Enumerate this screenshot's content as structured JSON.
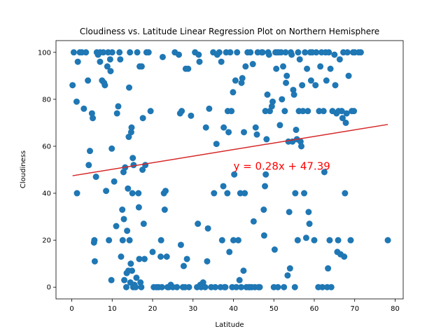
{
  "chart_data": {
    "type": "scatter",
    "title": "Cloudiness vs. Latitude Linear Regression Plot on Northern Hemisphere",
    "xlabel": "Latitude",
    "ylabel": "Cloudiness",
    "xlim": [
      -3.9,
      82
    ],
    "ylim": [
      -5,
      105
    ],
    "xticks": [
      0,
      10,
      20,
      30,
      40,
      50,
      60,
      70,
      80
    ],
    "yticks": [
      0,
      20,
      40,
      60,
      80,
      100
    ],
    "grid": false,
    "colors": {
      "points": "#1f77b4",
      "regression": "#d62728",
      "equation": "#ff0000"
    },
    "regression": {
      "slope": 0.28,
      "intercept": 47.39,
      "x_range": [
        0.2,
        78.2
      ],
      "equation_label": "y = 0.28x + 47.39",
      "label_position": [
        40,
        50
      ]
    },
    "points": [
      [
        0.2,
        86
      ],
      [
        0.5,
        100
      ],
      [
        1.2,
        79
      ],
      [
        1.5,
        96
      ],
      [
        1.3,
        40
      ],
      [
        2,
        100
      ],
      [
        2.5,
        100
      ],
      [
        3,
        76
      ],
      [
        3.5,
        100
      ],
      [
        4,
        88
      ],
      [
        4.2,
        52
      ],
      [
        4.5,
        58
      ],
      [
        5,
        74
      ],
      [
        5.2,
        72
      ],
      [
        5.5,
        19
      ],
      [
        5.6,
        20
      ],
      [
        5.7,
        11
      ],
      [
        6,
        47
      ],
      [
        6.2,
        100
      ],
      [
        6.5,
        99
      ],
      [
        7,
        100
      ],
      [
        7,
        96
      ],
      [
        7.5,
        88
      ],
      [
        7.8,
        100
      ],
      [
        8,
        87
      ],
      [
        8.2,
        86
      ],
      [
        8.5,
        41
      ],
      [
        8.8,
        94
      ],
      [
        9,
        100
      ],
      [
        9.2,
        20
      ],
      [
        9.5,
        97
      ],
      [
        9.6,
        92
      ],
      [
        9.8,
        3
      ],
      [
        9.9,
        59
      ],
      [
        10,
        100
      ],
      [
        10.5,
        45
      ],
      [
        11,
        26
      ],
      [
        11.2,
        74
      ],
      [
        11.5,
        77
      ],
      [
        11.8,
        100
      ],
      [
        12,
        97
      ],
      [
        12.2,
        13
      ],
      [
        12.5,
        33
      ],
      [
        12.6,
        20
      ],
      [
        12.8,
        49
      ],
      [
        12.9,
        29
      ],
      [
        13,
        3
      ],
      [
        13.2,
        51
      ],
      [
        13.5,
        0
      ],
      [
        13.6,
        6
      ],
      [
        13.7,
        24
      ],
      [
        13.9,
        42
      ],
      [
        14,
        7
      ],
      [
        14.1,
        64
      ],
      [
        14.2,
        85
      ],
      [
        14.3,
        20
      ],
      [
        14.4,
        100
      ],
      [
        14.5,
        2
      ],
      [
        14.6,
        10
      ],
      [
        14.7,
        66
      ],
      [
        14.8,
        68
      ],
      [
        14.9,
        7
      ],
      [
        15,
        40
      ],
      [
        15.1,
        55
      ],
      [
        15.2,
        0
      ],
      [
        15.3,
        52
      ],
      [
        15.5,
        1
      ],
      [
        15.8,
        0
      ],
      [
        16,
        4
      ],
      [
        16.2,
        100
      ],
      [
        16.5,
        40
      ],
      [
        16.6,
        34
      ],
      [
        16.7,
        12
      ],
      [
        16.8,
        94
      ],
      [
        17,
        2
      ],
      [
        17.2,
        0
      ],
      [
        17.3,
        94
      ],
      [
        17.5,
        50
      ],
      [
        17.6,
        72
      ],
      [
        17.8,
        27
      ],
      [
        18,
        12
      ],
      [
        18.2,
        52
      ],
      [
        18.5,
        100
      ],
      [
        19,
        100
      ],
      [
        19.5,
        75
      ],
      [
        20,
        15
      ],
      [
        20.3,
        0
      ],
      [
        21,
        0
      ],
      [
        21.5,
        0
      ],
      [
        22,
        13
      ],
      [
        22.1,
        20
      ],
      [
        22.3,
        0
      ],
      [
        22.5,
        98
      ],
      [
        22.8,
        40
      ],
      [
        23,
        33
      ],
      [
        23.2,
        41
      ],
      [
        23.5,
        13
      ],
      [
        23.7,
        0
      ],
      [
        24,
        0
      ],
      [
        24.5,
        1
      ],
      [
        25,
        0
      ],
      [
        25.5,
        100
      ],
      [
        26,
        0
      ],
      [
        26.5,
        99
      ],
      [
        26.8,
        74
      ],
      [
        27,
        18
      ],
      [
        27.2,
        75
      ],
      [
        27.5,
        0
      ],
      [
        27.7,
        9
      ],
      [
        28,
        0
      ],
      [
        28.2,
        93
      ],
      [
        28.5,
        12
      ],
      [
        28.8,
        93
      ],
      [
        29,
        0
      ],
      [
        29.5,
        73
      ],
      [
        30.5,
        100
      ],
      [
        31,
        0
      ],
      [
        31.2,
        27
      ],
      [
        31.4,
        99
      ],
      [
        31.6,
        96
      ],
      [
        31.8,
        1
      ],
      [
        32,
        0
      ],
      [
        32.5,
        2
      ],
      [
        33,
        0
      ],
      [
        33.2,
        68
      ],
      [
        33.5,
        11
      ],
      [
        33.7,
        25
      ],
      [
        34,
        76
      ],
      [
        34.5,
        0
      ],
      [
        35,
        100
      ],
      [
        35.2,
        40
      ],
      [
        35.5,
        0
      ],
      [
        35.8,
        61
      ],
      [
        36,
        99
      ],
      [
        36.5,
        100
      ],
      [
        36.8,
        0
      ],
      [
        37,
        96
      ],
      [
        37.2,
        20
      ],
      [
        37.5,
        43
      ],
      [
        37.6,
        68
      ],
      [
        37.8,
        0
      ],
      [
        38,
        0
      ],
      [
        38.2,
        100
      ],
      [
        38.5,
        40
      ],
      [
        38.6,
        75
      ],
      [
        38.8,
        66
      ],
      [
        39,
        15
      ],
      [
        39.2,
        100
      ],
      [
        39.5,
        75
      ],
      [
        39.7,
        0
      ],
      [
        39.9,
        83
      ],
      [
        40,
        20
      ],
      [
        40.2,
        48
      ],
      [
        40.5,
        88
      ],
      [
        40.7,
        0
      ],
      [
        40.9,
        100
      ],
      [
        41.2,
        20
      ],
      [
        41.5,
        3
      ],
      [
        41.7,
        40
      ],
      [
        41.9,
        0
      ],
      [
        42,
        87
      ],
      [
        42.2,
        89
      ],
      [
        42.5,
        7
      ],
      [
        42.6,
        66
      ],
      [
        42.8,
        40
      ],
      [
        43,
        94
      ],
      [
        43.2,
        0
      ],
      [
        43.5,
        100
      ],
      [
        43.8,
        0
      ],
      [
        44,
        0
      ],
      [
        44.2,
        100
      ],
      [
        44.5,
        0
      ],
      [
        44.8,
        95
      ],
      [
        45,
        28
      ],
      [
        45.3,
        0
      ],
      [
        45.5,
        68
      ],
      [
        45.8,
        65
      ],
      [
        46,
        100
      ],
      [
        46.2,
        0
      ],
      [
        46.5,
        0
      ],
      [
        47,
        100
      ],
      [
        47.2,
        100
      ],
      [
        47.5,
        33
      ],
      [
        47.6,
        22
      ],
      [
        47.8,
        43
      ],
      [
        47.9,
        75
      ],
      [
        48,
        48
      ],
      [
        48.2,
        63
      ],
      [
        48.4,
        82
      ],
      [
        48.6,
        100
      ],
      [
        48.8,
        99
      ],
      [
        49,
        75
      ],
      [
        49.5,
        77
      ],
      [
        49.7,
        79
      ],
      [
        50,
        0
      ],
      [
        50.2,
        16
      ],
      [
        50.4,
        100
      ],
      [
        50.6,
        93
      ],
      [
        50.8,
        100
      ],
      [
        51,
        0
      ],
      [
        51.2,
        100
      ],
      [
        51.5,
        69
      ],
      [
        51.8,
        100
      ],
      [
        52,
        80
      ],
      [
        52.3,
        94
      ],
      [
        52.5,
        0
      ],
      [
        52.7,
        75
      ],
      [
        52.9,
        100
      ],
      [
        53,
        87
      ],
      [
        53.2,
        90
      ],
      [
        53.4,
        5
      ],
      [
        53.6,
        62
      ],
      [
        53.8,
        32
      ],
      [
        54,
        8
      ],
      [
        54.2,
        100
      ],
      [
        54.4,
        99
      ],
      [
        54.6,
        62
      ],
      [
        54.8,
        84
      ],
      [
        55,
        82
      ],
      [
        55.2,
        0
      ],
      [
        55.3,
        40
      ],
      [
        55.5,
        67
      ],
      [
        55.7,
        63
      ],
      [
        55.9,
        20
      ],
      [
        56,
        100
      ],
      [
        56.2,
        75
      ],
      [
        56.4,
        97
      ],
      [
        56.6,
        62
      ],
      [
        56.8,
        60
      ],
      [
        57,
        86
      ],
      [
        57.2,
        75
      ],
      [
        57.5,
        40
      ],
      [
        57.7,
        100
      ],
      [
        58,
        21
      ],
      [
        58.2,
        93
      ],
      [
        58.4,
        75
      ],
      [
        58.6,
        32
      ],
      [
        58.8,
        27
      ],
      [
        59,
        100
      ],
      [
        59.2,
        88
      ],
      [
        59.5,
        100
      ],
      [
        60,
        20
      ],
      [
        60.3,
        86
      ],
      [
        60.5,
        100
      ],
      [
        61,
        0
      ],
      [
        61.2,
        75
      ],
      [
        61.5,
        94
      ],
      [
        61.8,
        100
      ],
      [
        62,
        0
      ],
      [
        62.3,
        75
      ],
      [
        62.5,
        49
      ],
      [
        62.8,
        100
      ],
      [
        63,
        88
      ],
      [
        63.2,
        0
      ],
      [
        63.4,
        8
      ],
      [
        63.6,
        100
      ],
      [
        63.8,
        20
      ],
      [
        64,
        93
      ],
      [
        64.2,
        0
      ],
      [
        64.5,
        75
      ],
      [
        65,
        99
      ],
      [
        65.2,
        86
      ],
      [
        65.5,
        74
      ],
      [
        65.7,
        15
      ],
      [
        65.9,
        20
      ],
      [
        66,
        75
      ],
      [
        66.3,
        97
      ],
      [
        66.5,
        14
      ],
      [
        66.8,
        75
      ],
      [
        67,
        72
      ],
      [
        67.2,
        100
      ],
      [
        67.4,
        13
      ],
      [
        67.6,
        40
      ],
      [
        67.8,
        70
      ],
      [
        68,
        74
      ],
      [
        68.2,
        100
      ],
      [
        68.5,
        90
      ],
      [
        69,
        20
      ],
      [
        69.3,
        75
      ],
      [
        69.6,
        100
      ],
      [
        69.8,
        75
      ],
      [
        70,
        100
      ],
      [
        71,
        100
      ],
      [
        71.5,
        100
      ],
      [
        78.2,
        20
      ]
    ]
  }
}
